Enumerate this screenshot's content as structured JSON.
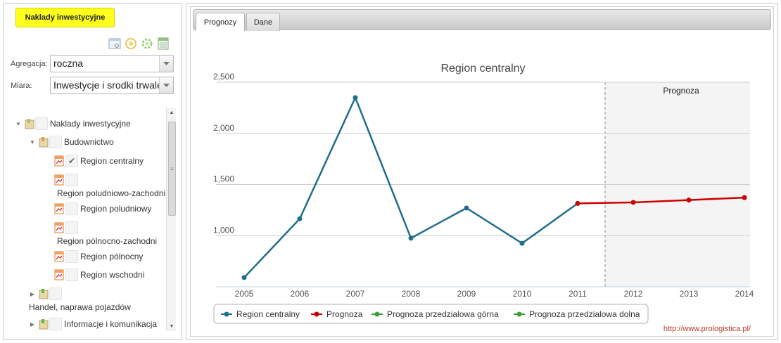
{
  "left": {
    "title_button": "Naklady inwestycyjne",
    "toolbar_icons": [
      "window-icon",
      "refresh-icon",
      "settings-icon",
      "export-icon"
    ],
    "aggregation": {
      "label": "Agregacja:",
      "value": "roczna"
    },
    "measure": {
      "label": "Miara:",
      "value": "Inwestycje i srodki trwale"
    },
    "tree": {
      "root": "Naklady inwestycyjne",
      "group1": "Budownictwo",
      "items": [
        "Region centralny",
        "Region poludniowo-zachodni",
        "Region poludniowy",
        "Region pólnocno-zachodni",
        "Region pólnocny",
        "Region wschodni"
      ],
      "group2": "Handel, naprawa pojazdów",
      "group3": "Informacje i komunikacja"
    }
  },
  "tabs": [
    "Prognozy",
    "Dane"
  ],
  "credit": "http://www.prologistica.pl/",
  "colors": {
    "history": "#1f6e8c",
    "forecast": "#cc0000",
    "upper": "#3aa03a",
    "lower": "#3aa03a",
    "forecast_bg": "#f4f4f4"
  },
  "chart_data": {
    "type": "line",
    "title": "Region centralny",
    "annotation": "Prognoza",
    "x": [
      "2005",
      "2006",
      "2007",
      "2008",
      "2009",
      "2010",
      "2011",
      "2012",
      "2013",
      "2014"
    ],
    "yticks": [
      "1,000",
      "1,500",
      "2,000",
      "2,500"
    ],
    "ylim": [
      500,
      2500
    ],
    "series": [
      {
        "name": "Region centralny",
        "x": [
          "2005",
          "2006",
          "2007",
          "2008",
          "2009",
          "2010",
          "2011"
        ],
        "values": [
          590,
          1165,
          2350,
          975,
          1270,
          925,
          1315
        ]
      },
      {
        "name": "Prognoza",
        "x": [
          "2011",
          "2012",
          "2013",
          "2014"
        ],
        "values": [
          1315,
          1325,
          1348,
          1372
        ]
      },
      {
        "name": "Prognoza przedzialowa górna",
        "x": [],
        "values": []
      },
      {
        "name": "Prognoza przedzialowa dolna",
        "x": [],
        "values": []
      }
    ],
    "legend": "bottom"
  }
}
